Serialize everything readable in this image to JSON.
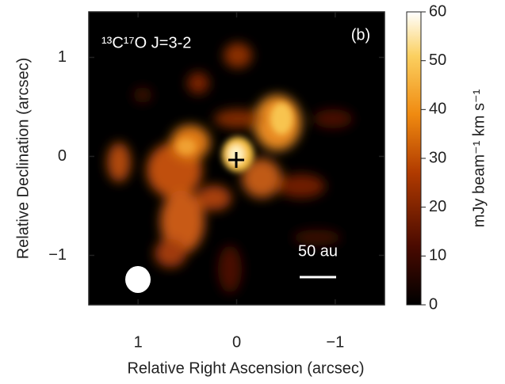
{
  "chart_data": {
    "type": "image",
    "annotation": "¹³C¹⁷O J=3-2",
    "panel_label": "(b)",
    "scale_bar_label": "50 au",
    "x_label": "Relative Right Ascension (arcsec)",
    "y_label": "Relative Declination (arcsec)",
    "xlim": [
      1.5,
      -1.5
    ],
    "xticks": [
      1,
      0,
      {
        "value": -1,
        "label": "−1"
      }
    ],
    "ylim": [
      -1.5,
      1.46
    ],
    "yticks": [
      {
        "value": -1,
        "label": "−1"
      },
      0,
      1
    ],
    "colorbar_label": "mJy beam⁻¹ km s⁻¹",
    "clim": [
      0,
      60
    ],
    "cticks": [
      0,
      10,
      20,
      30,
      40,
      50,
      60
    ]
  }
}
